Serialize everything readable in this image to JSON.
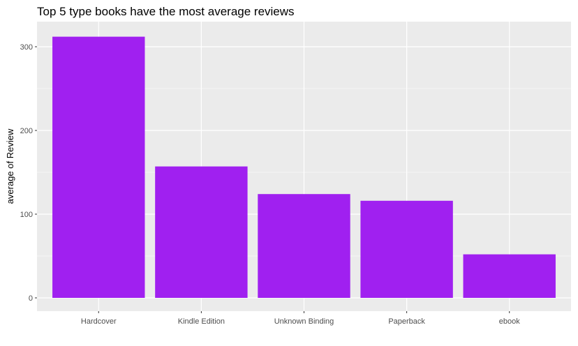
{
  "chart_data": {
    "type": "bar",
    "title": "Top 5 type books have the most average reviews",
    "xlabel": "",
    "ylabel": "average of Review",
    "categories": [
      "Hardcover",
      "Kindle Edition",
      "Unknown Binding",
      "Paperback",
      "ebook"
    ],
    "values": [
      312,
      157,
      124,
      116,
      52
    ],
    "ylim": [
      0,
      330
    ],
    "yticks": [
      0,
      100,
      200,
      300
    ],
    "grid": true,
    "legend": "none",
    "colors": {
      "bar_fill": "#A020F0",
      "panel_background": "#EBEBEB",
      "grid_line": "#FFFFFF"
    }
  }
}
